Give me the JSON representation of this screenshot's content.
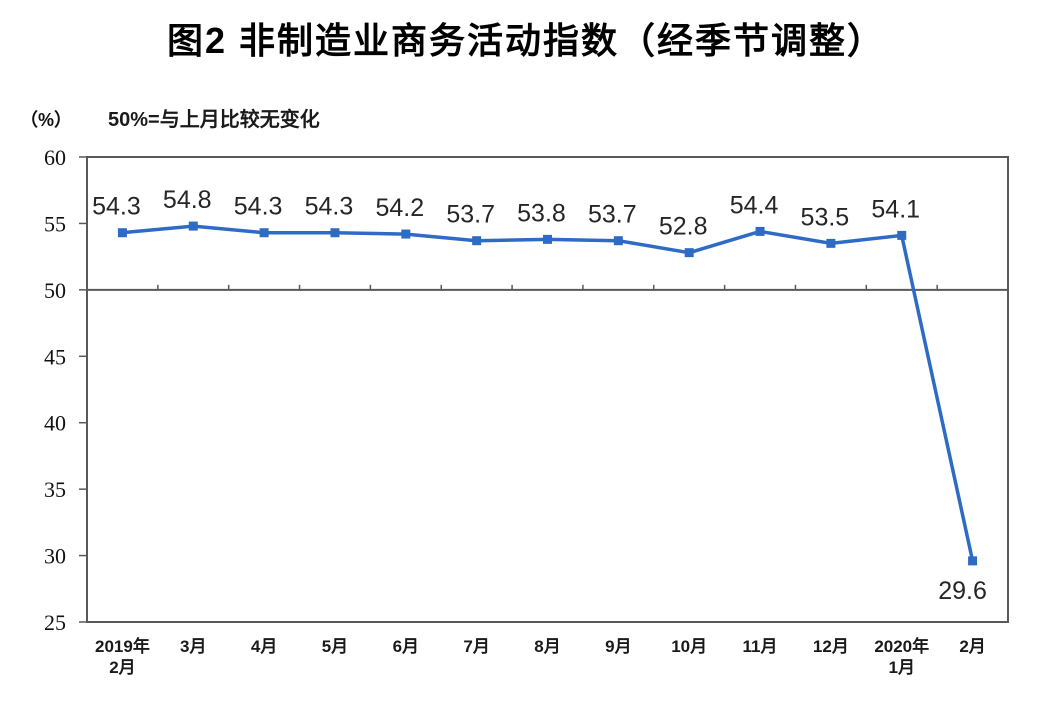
{
  "page": {
    "title": "图2 非制造业商务活动指数（经季节调整）"
  },
  "chart": {
    "unit_label": "（%）",
    "note": "50%=与上月比较无变化"
  },
  "chart_data": {
    "type": "line",
    "title": "图2 非制造业商务活动指数（经季节调整）",
    "subtitle": "50%=与上月比较无变化",
    "ylabel": "（%）",
    "categories": [
      [
        "2019年",
        "2月"
      ],
      [
        "3月"
      ],
      [
        "4月"
      ],
      [
        "5月"
      ],
      [
        "6月"
      ],
      [
        "7月"
      ],
      [
        "8月"
      ],
      [
        "9月"
      ],
      [
        "10月"
      ],
      [
        "11月"
      ],
      [
        "12月"
      ],
      [
        "2020年",
        "1月"
      ],
      [
        "2月"
      ]
    ],
    "series": [
      {
        "name": "非制造业商务活动指数",
        "values": [
          54.3,
          54.8,
          54.3,
          54.3,
          54.2,
          53.7,
          53.8,
          53.7,
          52.8,
          54.4,
          53.5,
          54.1,
          29.6
        ]
      }
    ],
    "data_labels": [
      "54.3",
      "54.8",
      "54.3",
      "54.3",
      "54.2",
      "53.7",
      "53.8",
      "53.7",
      "52.8",
      "54.4",
      "53.5",
      "54.1",
      "29.6"
    ],
    "ylim": [
      25,
      60
    ],
    "ytick_step": 5,
    "yticks": [
      60,
      55,
      50,
      45,
      40,
      35,
      30,
      25
    ],
    "reference_line": 50,
    "grid": false,
    "legend_position": "none",
    "marker": "square",
    "colors": {
      "line": "#2E6BC4",
      "axis": "#595959",
      "data_label": "#262626",
      "tick_label": "#111111"
    }
  }
}
